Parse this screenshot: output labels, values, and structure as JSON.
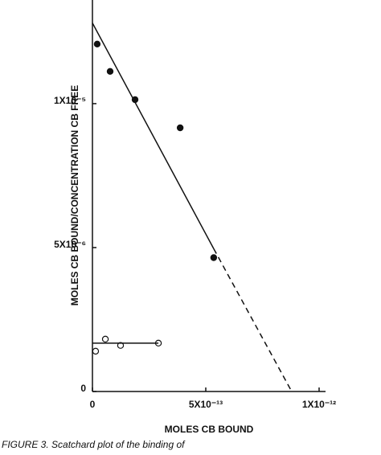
{
  "chart_data": {
    "type": "scatter",
    "x_label": "MOLES CB BOUND",
    "y_label": "MOLES CB BOUND/CONCENTRATION CB FREE",
    "caption": "FIGURE 3.  Scatchard plot of the binding of",
    "xlim": [
      0,
      1e-12
    ],
    "ylim": [
      0,
      1.36e-05
    ],
    "xticks": [
      0,
      {
        "value": 5e-13,
        "label": "5X10⁻¹³"
      },
      {
        "value": 1e-12,
        "label": "1X10⁻¹²"
      }
    ],
    "yticks": [
      0,
      {
        "value": 5e-06,
        "label": "5X10⁻⁶"
      },
      {
        "value": 1e-05,
        "label": "1X10⁻⁵"
      }
    ],
    "color": "#111111",
    "series": [
      {
        "style": "filled",
        "x": [
          2.1e-14,
          7.8e-14,
          1.88e-13,
          3.87e-13,
          5.35e-13
        ],
        "values": [
          1.207e-05,
          1.112e-05,
          1.014e-05,
          9.16e-06,
          4.65e-06
        ]
      },
      {
        "style": "open",
        "x": [
          1.4e-14,
          5.7e-14,
          1.24e-13,
          2.91e-13
        ],
        "values": [
          1.4e-06,
          1.82e-06,
          1.6e-06,
          1.68e-06
        ]
      },
      {
        "style": "solid-line",
        "x": [
          0,
          5.35e-13
        ],
        "values": [
          1.28e-05,
          4.96e-06
        ]
      },
      {
        "style": "dashed-line",
        "x": [
          5.35e-13,
          8.79e-13
        ],
        "values": [
          4.96e-06,
          0
        ]
      },
      {
        "style": "solid-line",
        "x": [
          0,
          2.91e-13
        ],
        "values": [
          1.68e-06,
          1.68e-06
        ]
      }
    ]
  }
}
